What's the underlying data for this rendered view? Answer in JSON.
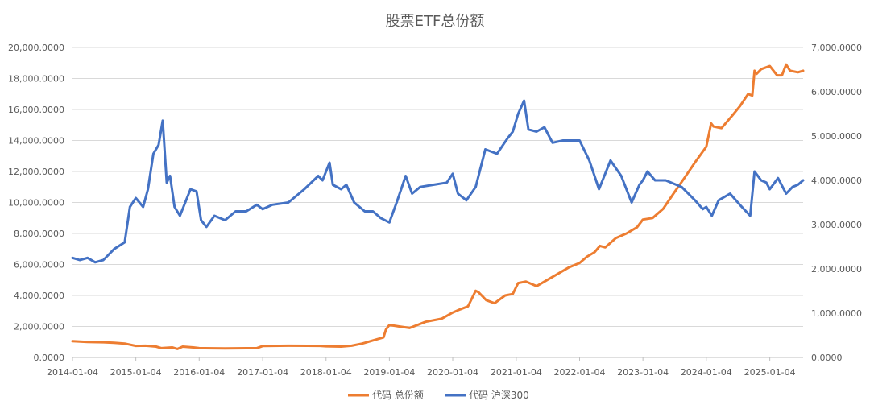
{
  "chart_data": {
    "type": "line",
    "title": "股票ETF总份额",
    "x_tick_labels": [
      "2014-01-04",
      "2015-01-04",
      "2016-01-04",
      "2017-01-04",
      "2018-01-04",
      "2019-01-04",
      "2020-01-04",
      "2021-01-04",
      "2022-01-04",
      "2023-01-04",
      "2024-01-04",
      "2025-01-04"
    ],
    "x_range": [
      "2014-01-04",
      "2025-07-15"
    ],
    "y_left": {
      "min": 0,
      "max": 20000,
      "ticks": [
        0,
        2000,
        4000,
        6000,
        8000,
        10000,
        12000,
        14000,
        16000,
        18000,
        20000
      ],
      "tick_labels": [
        "0.0000",
        "2,000.0000",
        "4,000.0000",
        "6,000.0000",
        "8,000.0000",
        "10,000.0000",
        "12,000.0000",
        "14,000.0000",
        "16,000.0000",
        "18,000.0000",
        "20,000.0000"
      ]
    },
    "y_right": {
      "min": 0,
      "max": 7000,
      "ticks": [
        0,
        1000,
        2000,
        3000,
        4000,
        5000,
        6000,
        7000
      ],
      "tick_labels": [
        "0.0000",
        "1,000.0000",
        "2,000.0000",
        "3,000.0000",
        "4,000.0000",
        "5,000.0000",
        "6,000.0000",
        "7,000.0000"
      ]
    },
    "grid": true,
    "legend_position": "bottom",
    "series": [
      {
        "name": "代码 总份额",
        "axis": "left",
        "color": "#ED7D31",
        "points": [
          [
            "2014-01-04",
            1050
          ],
          [
            "2014-04-01",
            1000
          ],
          [
            "2014-07-01",
            980
          ],
          [
            "2014-09-01",
            950
          ],
          [
            "2014-11-01",
            900
          ],
          [
            "2015-01-04",
            750
          ],
          [
            "2015-03-01",
            760
          ],
          [
            "2015-05-01",
            700
          ],
          [
            "2015-06-01",
            600
          ],
          [
            "2015-08-01",
            650
          ],
          [
            "2015-09-01",
            550
          ],
          [
            "2015-10-01",
            700
          ],
          [
            "2015-12-01",
            650
          ],
          [
            "2016-01-04",
            600
          ],
          [
            "2016-06-01",
            580
          ],
          [
            "2016-12-01",
            600
          ],
          [
            "2017-01-04",
            740
          ],
          [
            "2017-06-01",
            760
          ],
          [
            "2017-12-01",
            750
          ],
          [
            "2018-01-04",
            720
          ],
          [
            "2018-04-01",
            700
          ],
          [
            "2018-06-01",
            760
          ],
          [
            "2018-08-01",
            900
          ],
          [
            "2018-11-01",
            1200
          ],
          [
            "2018-12-01",
            1300
          ],
          [
            "2018-12-15",
            1800
          ],
          [
            "2019-01-04",
            2100
          ],
          [
            "2019-03-01",
            2000
          ],
          [
            "2019-05-01",
            1900
          ],
          [
            "2019-08-01",
            2300
          ],
          [
            "2019-11-01",
            2500
          ],
          [
            "2020-01-04",
            2900
          ],
          [
            "2020-02-15",
            3100
          ],
          [
            "2020-04-01",
            3300
          ],
          [
            "2020-05-15",
            4300
          ],
          [
            "2020-06-01",
            4200
          ],
          [
            "2020-07-15",
            3700
          ],
          [
            "2020-09-01",
            3500
          ],
          [
            "2020-11-01",
            4000
          ],
          [
            "2020-12-15",
            4100
          ],
          [
            "2021-01-15",
            4800
          ],
          [
            "2021-03-01",
            4900
          ],
          [
            "2021-05-01",
            4600
          ],
          [
            "2021-07-01",
            5000
          ],
          [
            "2021-09-01",
            5400
          ],
          [
            "2021-11-01",
            5800
          ],
          [
            "2022-01-04",
            6100
          ],
          [
            "2022-02-15",
            6500
          ],
          [
            "2022-04-01",
            6800
          ],
          [
            "2022-05-01",
            7200
          ],
          [
            "2022-06-01",
            7100
          ],
          [
            "2022-08-01",
            7700
          ],
          [
            "2022-10-01",
            8000
          ],
          [
            "2022-12-01",
            8400
          ],
          [
            "2023-01-04",
            8900
          ],
          [
            "2023-03-01",
            9000
          ],
          [
            "2023-05-01",
            9600
          ],
          [
            "2023-07-01",
            10600
          ],
          [
            "2023-09-01",
            11600
          ],
          [
            "2023-11-01",
            12600
          ],
          [
            "2024-01-04",
            13600
          ],
          [
            "2024-02-01",
            15100
          ],
          [
            "2024-02-15",
            14900
          ],
          [
            "2024-04-01",
            14800
          ],
          [
            "2024-06-01",
            15600
          ],
          [
            "2024-07-15",
            16200
          ],
          [
            "2024-09-01",
            17000
          ],
          [
            "2024-09-25",
            16900
          ],
          [
            "2024-10-08",
            18500
          ],
          [
            "2024-10-20",
            18300
          ],
          [
            "2024-11-15",
            18600
          ],
          [
            "2025-01-04",
            18800
          ],
          [
            "2025-02-15",
            18200
          ],
          [
            "2025-03-15",
            18200
          ],
          [
            "2025-04-08",
            18900
          ],
          [
            "2025-05-01",
            18500
          ],
          [
            "2025-06-15",
            18400
          ],
          [
            "2025-07-15",
            18500
          ]
        ]
      },
      {
        "name": "代码 沪深300",
        "axis": "right",
        "color": "#4472C4",
        "points": [
          [
            "2014-01-04",
            2250
          ],
          [
            "2014-02-15",
            2200
          ],
          [
            "2014-04-01",
            2250
          ],
          [
            "2014-05-15",
            2150
          ],
          [
            "2014-07-01",
            2200
          ],
          [
            "2014-09-01",
            2450
          ],
          [
            "2014-11-01",
            2600
          ],
          [
            "2014-12-01",
            3400
          ],
          [
            "2015-01-04",
            3600
          ],
          [
            "2015-02-15",
            3400
          ],
          [
            "2015-03-15",
            3800
          ],
          [
            "2015-04-15",
            4600
          ],
          [
            "2015-05-15",
            4800
          ],
          [
            "2015-06-08",
            5350
          ],
          [
            "2015-07-01",
            3950
          ],
          [
            "2015-07-20",
            4100
          ],
          [
            "2015-08-15",
            3400
          ],
          [
            "2015-09-15",
            3200
          ],
          [
            "2015-11-15",
            3800
          ],
          [
            "2015-12-20",
            3750
          ],
          [
            "2016-01-15",
            3100
          ],
          [
            "2016-02-15",
            2950
          ],
          [
            "2016-04-01",
            3200
          ],
          [
            "2016-06-01",
            3100
          ],
          [
            "2016-08-01",
            3300
          ],
          [
            "2016-10-01",
            3300
          ],
          [
            "2016-12-01",
            3450
          ],
          [
            "2017-01-04",
            3350
          ],
          [
            "2017-03-01",
            3450
          ],
          [
            "2017-06-01",
            3500
          ],
          [
            "2017-09-01",
            3800
          ],
          [
            "2017-11-20",
            4100
          ],
          [
            "2017-12-15",
            4000
          ],
          [
            "2018-01-24",
            4400
          ],
          [
            "2018-02-12",
            3900
          ],
          [
            "2018-04-01",
            3800
          ],
          [
            "2018-05-01",
            3900
          ],
          [
            "2018-06-15",
            3500
          ],
          [
            "2018-08-15",
            3300
          ],
          [
            "2018-10-01",
            3300
          ],
          [
            "2018-11-15",
            3150
          ],
          [
            "2019-01-04",
            3050
          ],
          [
            "2019-02-15",
            3500
          ],
          [
            "2019-04-08",
            4100
          ],
          [
            "2019-05-15",
            3700
          ],
          [
            "2019-07-01",
            3850
          ],
          [
            "2019-09-15",
            3900
          ],
          [
            "2019-12-01",
            3950
          ],
          [
            "2020-01-04",
            4150
          ],
          [
            "2020-02-03",
            3700
          ],
          [
            "2020-03-23",
            3550
          ],
          [
            "2020-05-15",
            3850
          ],
          [
            "2020-07-10",
            4700
          ],
          [
            "2020-09-15",
            4600
          ],
          [
            "2020-11-15",
            4950
          ],
          [
            "2020-12-15",
            5100
          ],
          [
            "2021-01-15",
            5500
          ],
          [
            "2021-02-18",
            5800
          ],
          [
            "2021-03-15",
            5150
          ],
          [
            "2021-05-01",
            5100
          ],
          [
            "2021-06-15",
            5200
          ],
          [
            "2021-08-01",
            4850
          ],
          [
            "2021-10-01",
            4900
          ],
          [
            "2021-12-15",
            4900
          ],
          [
            "2022-01-04",
            4900
          ],
          [
            "2022-03-01",
            4450
          ],
          [
            "2022-04-26",
            3800
          ],
          [
            "2022-07-01",
            4450
          ],
          [
            "2022-09-01",
            4100
          ],
          [
            "2022-10-31",
            3500
          ],
          [
            "2022-12-15",
            3900
          ],
          [
            "2023-01-04",
            4000
          ],
          [
            "2023-01-30",
            4200
          ],
          [
            "2023-03-15",
            4000
          ],
          [
            "2023-05-15",
            4000
          ],
          [
            "2023-08-15",
            3850
          ],
          [
            "2023-10-31",
            3550
          ],
          [
            "2023-12-15",
            3350
          ],
          [
            "2024-01-04",
            3400
          ],
          [
            "2024-02-05",
            3200
          ],
          [
            "2024-03-15",
            3550
          ],
          [
            "2024-05-20",
            3700
          ],
          [
            "2024-07-15",
            3450
          ],
          [
            "2024-09-13",
            3200
          ],
          [
            "2024-10-08",
            4200
          ],
          [
            "2024-11-15",
            4000
          ],
          [
            "2024-12-15",
            3950
          ],
          [
            "2025-01-04",
            3800
          ],
          [
            "2025-02-20",
            4050
          ],
          [
            "2025-04-08",
            3700
          ],
          [
            "2025-05-15",
            3850
          ],
          [
            "2025-06-15",
            3900
          ],
          [
            "2025-07-15",
            4000
          ]
        ]
      }
    ]
  }
}
